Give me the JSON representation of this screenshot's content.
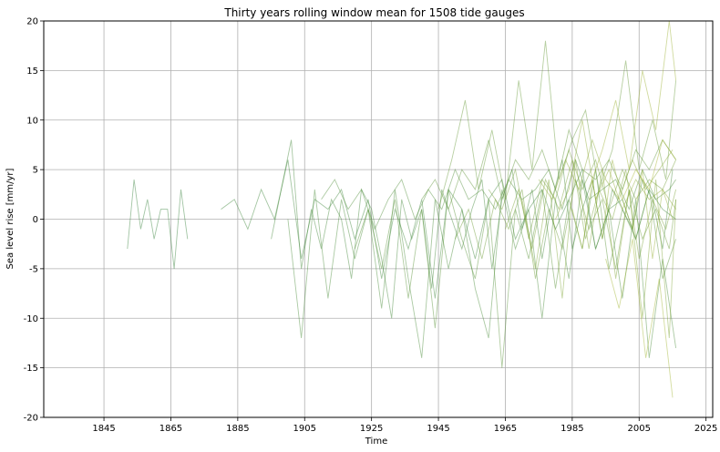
{
  "chart_data": {
    "type": "line",
    "title": "Thirty years rolling window mean for 1508 tide gauges",
    "xlabel": "Time",
    "ylabel": "Sea level rise [mm/yr]",
    "xlim": [
      1827,
      2027
    ],
    "ylim": [
      -20,
      20
    ],
    "x_ticks": [
      1845,
      1865,
      1885,
      1905,
      1925,
      1945,
      1965,
      1985,
      2005,
      2025
    ],
    "y_ticks": [
      20,
      15,
      10,
      5,
      0,
      -5,
      -10,
      -15,
      -20
    ],
    "grid": true,
    "series_color_start": "#2e7d32",
    "series_color_end": "#a5b428",
    "series": [
      {
        "x": [
          1852,
          1854,
          1856,
          1858,
          1860,
          1862,
          1864,
          1866,
          1868,
          1870
        ],
        "values": [
          -3,
          4,
          -1,
          2,
          -2,
          1,
          1,
          -5,
          3,
          -2
        ]
      },
      {
        "x": [
          1880,
          1884,
          1888,
          1892,
          1896,
          1900,
          1904,
          1908,
          1912,
          1916,
          1920,
          1924,
          1928,
          1932,
          1936,
          1940,
          1944,
          1948,
          1952,
          1956,
          1960,
          1964,
          1968,
          1972,
          1976,
          1980,
          1984,
          1988,
          1992,
          1996,
          2000,
          2004,
          2008,
          2012,
          2016
        ],
        "values": [
          1,
          2,
          -1,
          3,
          0,
          6,
          -4,
          2,
          1,
          3,
          -2,
          2,
          -6,
          1,
          -3,
          2,
          -8,
          3,
          1,
          -4,
          2,
          4,
          -2,
          1,
          3,
          -1,
          2,
          5,
          -3,
          1,
          2,
          -2,
          3,
          1,
          0
        ]
      },
      {
        "x": [
          1895,
          1898,
          1901,
          1904,
          1907,
          1910,
          1913,
          1916,
          1919,
          1922,
          1925,
          1928,
          1931,
          1934,
          1937,
          1940,
          1943,
          1946,
          1949,
          1952,
          1955,
          1958,
          1961,
          1964,
          1967,
          1970,
          1973,
          1976,
          1979,
          1982,
          1985,
          1988,
          1991,
          1994,
          1997,
          2000,
          2003,
          2006,
          2009,
          2012,
          2015
        ],
        "values": [
          -2,
          3,
          8,
          -5,
          1,
          -3,
          2,
          0,
          -6,
          3,
          1,
          -4,
          -10,
          2,
          -2,
          1,
          -7,
          3,
          0,
          -3,
          1,
          4,
          -5,
          2,
          5,
          -1,
          3,
          -4,
          2,
          6,
          -3,
          1,
          4,
          -2,
          3,
          1,
          -1,
          4,
          2,
          -3,
          5
        ]
      },
      {
        "x": [
          1900,
          1904,
          1908,
          1912,
          1916,
          1920,
          1924,
          1928,
          1932,
          1936,
          1940,
          1944,
          1948,
          1952,
          1956,
          1960,
          1964,
          1968,
          1972,
          1976,
          1980,
          1984,
          1988,
          1992,
          1996,
          2000,
          2004,
          2008,
          2012,
          2016
        ],
        "values": [
          0,
          -12,
          3,
          -8,
          2,
          -4,
          1,
          -9,
          3,
          -6,
          -14,
          2,
          -5,
          1,
          -7,
          -12,
          3,
          -3,
          1,
          -10,
          2,
          -6,
          4,
          -3,
          1,
          -8,
          2,
          -14,
          -4,
          -13
        ]
      },
      {
        "x": [
          1910,
          1914,
          1918,
          1922,
          1926,
          1930,
          1934,
          1938,
          1942,
          1946,
          1950,
          1954,
          1958,
          1962,
          1966,
          1970,
          1974,
          1978,
          1982,
          1986,
          1990,
          1994,
          1998,
          2002,
          2006,
          2010,
          2014,
          2016
        ],
        "values": [
          2,
          4,
          1,
          3,
          -1,
          2,
          4,
          0,
          3,
          1,
          5,
          2,
          3,
          1,
          4,
          2,
          3,
          5,
          1,
          6,
          2,
          3,
          4,
          1,
          5,
          2,
          3,
          4
        ]
      },
      {
        "x": [
          1920,
          1924,
          1928,
          1932,
          1936,
          1940,
          1944,
          1948,
          1952,
          1956,
          1960,
          1964,
          1968,
          1972,
          1976,
          1980,
          1984,
          1988,
          1992,
          1996,
          2000,
          2004,
          2008,
          2012,
          2016
        ],
        "values": [
          -3,
          1,
          -5,
          2,
          -8,
          1,
          -11,
          3,
          -2,
          -6,
          2,
          -15,
          1,
          -4,
          3,
          -7,
          2,
          -3,
          5,
          -5,
          1,
          -2,
          3,
          -6,
          -2
        ]
      },
      {
        "x": [
          1940,
          1944,
          1948,
          1952,
          1956,
          1960,
          1964,
          1968,
          1972,
          1976,
          1980,
          1984,
          1988,
          1992,
          1996,
          2000,
          2004,
          2008,
          2012,
          2016
        ],
        "values": [
          2,
          4,
          1,
          5,
          3,
          8,
          2,
          6,
          4,
          7,
          3,
          9,
          5,
          4,
          6,
          3,
          7,
          5,
          8,
          6
        ]
      },
      {
        "x": [
          1945,
          1949,
          1953,
          1957,
          1961,
          1965,
          1969,
          1973,
          1977,
          1981,
          1985,
          1989,
          1993,
          1997,
          2001,
          2005,
          2009,
          2013,
          2016
        ],
        "values": [
          1,
          6,
          12,
          3,
          9,
          2,
          14,
          5,
          18,
          4,
          8,
          11,
          3,
          7,
          16,
          5,
          10,
          4,
          14
        ]
      },
      {
        "x": [
          1950,
          1954,
          1958,
          1962,
          1966,
          1970,
          1974,
          1978,
          1982,
          1986,
          1990,
          1994,
          1998,
          2002,
          2006,
          2010,
          2014,
          2016
        ],
        "values": [
          -2,
          1,
          -4,
          2,
          -1,
          3,
          -6,
          1,
          -3,
          4,
          -1,
          2,
          -5,
          3,
          -2,
          1,
          -3,
          2
        ]
      },
      {
        "x": [
          1960,
          1964,
          1968,
          1972,
          1976,
          1980,
          1984,
          1988,
          1992,
          1996,
          2000,
          2004,
          2008,
          2012,
          2016
        ],
        "values": [
          3,
          1,
          5,
          -2,
          4,
          2,
          7,
          3,
          6,
          1,
          5,
          2,
          4,
          3,
          6
        ]
      },
      {
        "x": [
          1965,
          1969,
          1973,
          1977,
          1981,
          1985,
          1989,
          1993,
          1997,
          2001,
          2005,
          2009,
          2013,
          2016
        ],
        "values": [
          -1,
          3,
          -3,
          4,
          1,
          6,
          -2,
          3,
          0,
          5,
          -4,
          2,
          -1,
          3
        ]
      },
      {
        "x": [
          1970,
          1974,
          1978,
          1982,
          1986,
          1990,
          1994,
          1998,
          2002,
          2006,
          2010,
          2014,
          2016
        ],
        "values": [
          2,
          -5,
          4,
          -8,
          6,
          -3,
          5,
          -6,
          3,
          -10,
          4,
          -12,
          2
        ]
      },
      {
        "x": [
          1975,
          1979,
          1983,
          1987,
          1991,
          1995,
          1999,
          2003,
          2007,
          2011,
          2015
        ],
        "values": [
          4,
          2,
          6,
          3,
          8,
          4,
          2,
          6,
          3,
          5,
          7
        ]
      },
      {
        "x": [
          1980,
          1984,
          1988,
          1992,
          1996,
          2000,
          2004,
          2008,
          2012,
          2016
        ],
        "values": [
          0,
          3,
          10,
          2,
          5,
          1,
          4,
          2,
          3,
          1
        ]
      },
      {
        "x": [
          1985,
          1988,
          1991,
          1994,
          1997,
          2000,
          2003,
          2006,
          2009,
          2012,
          2015
        ],
        "values": [
          1,
          -3,
          4,
          -2,
          6,
          2,
          -1,
          5,
          -4,
          3,
          0
        ]
      },
      {
        "x": [
          1990,
          1994,
          1998,
          2002,
          2006,
          2010,
          2014,
          2016
        ],
        "values": [
          3,
          7,
          12,
          5,
          15,
          9,
          20,
          14
        ]
      },
      {
        "x": [
          1995,
          1999,
          2003,
          2007,
          2011,
          2015
        ],
        "values": [
          -4,
          -9,
          -2,
          -14,
          -6,
          -18
        ]
      },
      {
        "x": [
          2000,
          2004,
          2008,
          2012,
          2016
        ],
        "values": [
          2,
          5,
          3,
          8,
          6
        ]
      }
    ]
  }
}
